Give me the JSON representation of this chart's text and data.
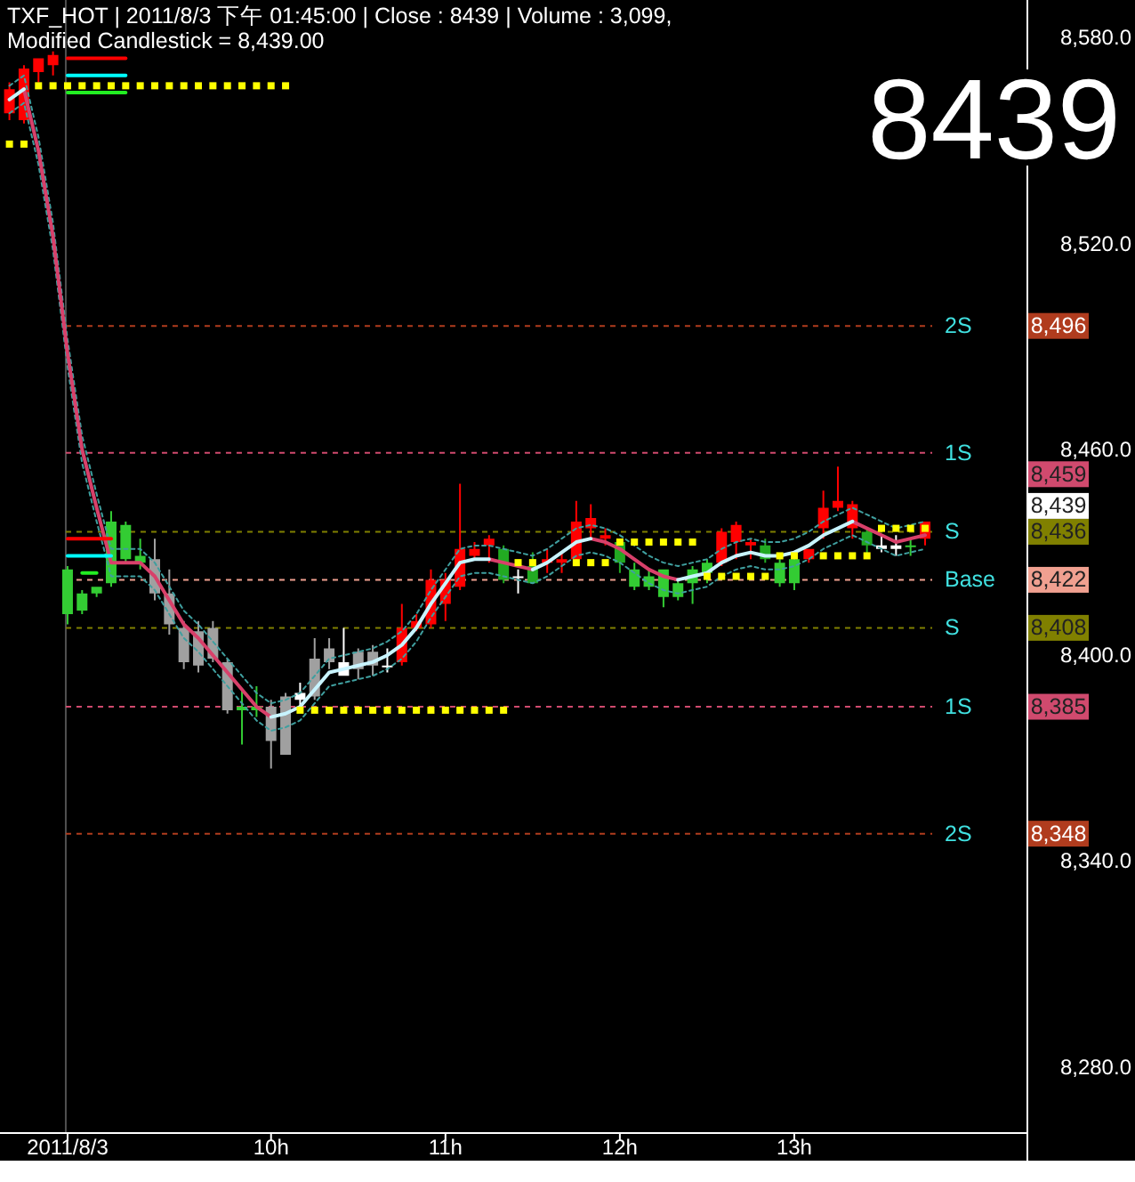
{
  "chart_data": {
    "type": "candlestick",
    "title": "TXF_HOT | 2011/8/3 下午 01:45:00 | Close : 8439 | Volume : 3,099,",
    "subtitle": "Modified Candlestick = 8,439.00",
    "categories": [
      null,
      null,
      null,
      null,
      "2011/8/3",
      null,
      null,
      null,
      null,
      null,
      null,
      null,
      null,
      null,
      null,
      null,
      null,
      null,
      "10h",
      null,
      null,
      null,
      null,
      null,
      null,
      null,
      null,
      null,
      null,
      null,
      "11h",
      null,
      null,
      null,
      null,
      null,
      null,
      null,
      null,
      null,
      null,
      null,
      "12h",
      null,
      null,
      null,
      null,
      null,
      null,
      null,
      null,
      null,
      null,
      null,
      "13h",
      null,
      null,
      null,
      null,
      null,
      null,
      null,
      null,
      null
    ],
    "ohlc": [
      [
        8558,
        8567,
        8556,
        8565
      ],
      [
        8556,
        8572,
        8555,
        8571
      ],
      [
        8570,
        8574,
        8567,
        8574
      ],
      [
        8572,
        8576,
        8569,
        8575
      ],
      [
        8425,
        8426,
        8409,
        8412
      ],
      [
        8418,
        8419,
        8412,
        8413
      ],
      [
        8420,
        8420,
        8417,
        8418
      ],
      [
        8439,
        8442,
        8420,
        8421
      ],
      [
        8438,
        8439,
        8427,
        8428
      ],
      [
        8429,
        8434,
        8425,
        8427
      ],
      [
        8428,
        8434,
        8416,
        8418
      ],
      [
        8418,
        8425,
        8406,
        8409
      ],
      [
        8408,
        8410,
        8396,
        8398
      ],
      [
        8407,
        8410,
        8395,
        8397
      ],
      [
        8408,
        8410,
        8398,
        8399
      ],
      [
        8398,
        8399,
        8383,
        8384
      ],
      [
        8385,
        8390,
        8374,
        8384
      ],
      [
        8385,
        8391,
        8382,
        8384
      ],
      [
        8385,
        8387,
        8367,
        8375
      ],
      [
        8388,
        8389,
        8371,
        8371
      ],
      [
        8387,
        8392,
        8385,
        8389
      ],
      [
        8388,
        8405,
        8387,
        8399
      ],
      [
        8398,
        8405,
        8396,
        8402
      ],
      [
        8394,
        8408,
        8394,
        8398
      ],
      [
        8396,
        8402,
        8393,
        8401
      ],
      [
        8397,
        8403,
        8394,
        8401
      ],
      [
        8397,
        8402,
        8395,
        8397
      ],
      [
        8398,
        8415,
        8397,
        8408
      ],
      [
        8408,
        8412,
        8407,
        8410
      ],
      [
        8409,
        8425,
        8408,
        8422
      ],
      [
        8415,
        8424,
        8410,
        8422
      ],
      [
        8420,
        8450,
        8419,
        8431
      ],
      [
        8429,
        8433,
        8428,
        8431
      ],
      [
        8432,
        8435,
        8427,
        8434
      ],
      [
        8431,
        8432,
        8421,
        8422
      ],
      [
        8423,
        8425,
        8418,
        8423
      ],
      [
        8426,
        8430,
        8421,
        8421
      ],
      [
        8427,
        8431,
        8424,
        8428
      ],
      [
        8427,
        8430,
        8424,
        8428
      ],
      [
        8428,
        8445,
        8427,
        8439
      ],
      [
        8437,
        8444,
        8434,
        8440
      ],
      [
        8434,
        8437,
        8432,
        8435
      ],
      [
        8433,
        8434,
        8424,
        8427
      ],
      [
        8425,
        8427,
        8419,
        8420
      ],
      [
        8423,
        8425,
        8419,
        8420
      ],
      [
        8425,
        8425,
        8414,
        8417
      ],
      [
        8421,
        8422,
        8416,
        8417
      ],
      [
        8425,
        8426,
        8415,
        8421
      ],
      [
        8427,
        8428,
        8421,
        8424
      ],
      [
        8427,
        8437,
        8426,
        8436
      ],
      [
        8433,
        8439,
        8428,
        8438
      ],
      [
        8432,
        8434,
        8428,
        8433
      ],
      [
        8432,
        8434,
        8427,
        8428
      ],
      [
        8427,
        8428,
        8420,
        8421
      ],
      [
        8428,
        8429,
        8419,
        8421
      ],
      [
        8428,
        8431,
        8427,
        8431
      ],
      [
        8437,
        8448,
        8434,
        8443
      ],
      [
        8443,
        8455,
        8442,
        8445
      ],
      [
        8437,
        8445,
        8434,
        8444
      ],
      [
        8436,
        8437,
        8429,
        8432
      ],
      [
        8431,
        8435,
        8430,
        8432
      ],
      [
        8431,
        8435,
        8429,
        8432
      ],
      [
        8432,
        8434,
        8429,
        8432
      ],
      [
        8434,
        8439,
        8432,
        8439
      ]
    ],
    "colors": [
      "#ff0000",
      "#ff0000",
      "#ff0000",
      "#ff0000",
      "#33cc33",
      "#33cc33",
      "#33cc33",
      "#33cc33",
      "#33cc33",
      "#33cc33",
      "#a0a0a0",
      "#a0a0a0",
      "#a0a0a0",
      "#a0a0a0",
      "#a0a0a0",
      "#a0a0a0",
      "#33cc33",
      "#33cc33",
      "#a0a0a0",
      "#a0a0a0",
      "#ffffff",
      "#a0a0a0",
      "#a0a0a0",
      "#ffffff",
      "#a0a0a0",
      "#a0a0a0",
      "#ffffff",
      "#ff0000",
      "#ff0000",
      "#ff0000",
      "#ff0000",
      "#ff0000",
      "#ff0000",
      "#ff0000",
      "#22aa22",
      "#ffffff",
      "#22aa22",
      "#ff0000",
      "#ff0000",
      "#ff0000",
      "#ff0000",
      "#ff0000",
      "#22aa22",
      "#33cc33",
      "#33cc33",
      "#33cc33",
      "#33cc33",
      "#33cc33",
      "#33cc33",
      "#ff0000",
      "#ff0000",
      "#ff0000",
      "#22aa22",
      "#33cc33",
      "#33cc33",
      "#ff0000",
      "#ff0000",
      "#ff0000",
      "#ff0000",
      "#22aa22",
      "#ffffff",
      "#ffffff",
      "#33cc33",
      "#ff0000"
    ],
    "ylim": [
      8261,
      8591
    ],
    "yticks": [
      {
        "value": 8280,
        "label": "8,280.0"
      },
      {
        "value": 8340,
        "label": "8,340.0"
      },
      {
        "value": 8400,
        "label": "8,400.0"
      },
      {
        "value": 8460,
        "label": "8,460.0"
      },
      {
        "value": 8520,
        "label": "8,520.0"
      },
      {
        "value": 8580,
        "label": "8,580.0"
      }
    ],
    "series": [
      {
        "type": "line",
        "color": "#3f9f9f",
        "line_style": "dashed",
        "values": [
          8566,
          8569,
          8551,
          8526,
          8492,
          8464,
          8447,
          8431,
          8431,
          8431,
          8427,
          8420,
          8413,
          8409,
          8404,
          8399,
          8394,
          8389,
          8386,
          8387,
          8389,
          8394,
          8399,
          8400,
          8401,
          8402,
          8404,
          8407,
          8412,
          8419,
          8425,
          8431,
          8432,
          8432,
          8431,
          8430,
          8429,
          8431,
          8434,
          8437,
          8438,
          8437,
          8435,
          8432,
          8429,
          8427,
          8426,
          8427,
          8428,
          8431,
          8433,
          8434,
          8433,
          8433,
          8434,
          8436,
          8439,
          8441,
          8443,
          8441,
          8439,
          8437,
          8438,
          8439
        ]
      },
      {
        "type": "line",
        "color": "#3f9f9f",
        "line_style": "dashed",
        "values": [
          8558,
          8561,
          8543,
          8518,
          8484,
          8456,
          8439,
          8423,
          8423,
          8423,
          8419,
          8412,
          8405,
          8401,
          8396,
          8391,
          8386,
          8381,
          8378,
          8379,
          8381,
          8386,
          8391,
          8392,
          8393,
          8394,
          8396,
          8399,
          8404,
          8411,
          8417,
          8423,
          8424,
          8424,
          8423,
          8422,
          8421,
          8423,
          8426,
          8429,
          8430,
          8429,
          8427,
          8424,
          8421,
          8419,
          8418,
          8419,
          8420,
          8423,
          8425,
          8426,
          8425,
          8425,
          8426,
          8428,
          8431,
          8433,
          8435,
          8433,
          8431,
          8429,
          8430,
          8431
        ]
      },
      {
        "type": "line",
        "color": "#d8406a",
        "values": [
          null,
          8565,
          8547,
          8522,
          8488,
          8460,
          8443,
          8427,
          8427,
          8427,
          8423,
          8416,
          8409,
          8405,
          8400,
          8395,
          8390,
          8385,
          8382,
          null,
          null,
          null,
          null,
          null,
          null,
          null,
          null,
          null,
          null,
          null,
          null,
          null,
          null,
          8428,
          8427,
          8426,
          8425,
          null,
          null,
          null,
          8434,
          8433,
          8431,
          8428,
          8425,
          8423,
          8422,
          null,
          null,
          null,
          null,
          null,
          null,
          null,
          null,
          null,
          null,
          null,
          8439,
          8437,
          8435,
          8433,
          8434,
          8435
        ]
      },
      {
        "type": "line",
        "color": "#c8f4ff",
        "values": [
          8562,
          8565,
          null,
          null,
          null,
          null,
          null,
          null,
          null,
          null,
          null,
          null,
          null,
          null,
          null,
          null,
          null,
          null,
          8382,
          8383,
          8385,
          8390,
          8395,
          8396,
          8397,
          8398,
          8400,
          8403,
          8408,
          8415,
          8421,
          8427,
          8428,
          8428,
          null,
          null,
          8425,
          8427,
          8430,
          8433,
          8434,
          null,
          null,
          null,
          null,
          null,
          8422,
          8423,
          8424,
          8427,
          8429,
          8430,
          8429,
          8429,
          8430,
          8432,
          8435,
          8437,
          8439,
          null,
          null,
          null,
          null,
          null
        ]
      },
      {
        "type": "scatter",
        "color": "#ffff00",
        "marker": "square",
        "values": [
          8549,
          8549,
          8566,
          8566,
          8566,
          8566,
          8566,
          8566,
          8566,
          8566,
          8566,
          8566,
          8566,
          8566,
          8566,
          8566,
          8566,
          8566,
          8566,
          8566,
          8384,
          8384,
          8384,
          8384,
          8384,
          8384,
          8384,
          8384,
          8384,
          8384,
          8384,
          8384,
          8384,
          8384,
          8384,
          8427,
          8427,
          null,
          null,
          8427,
          8427,
          8427,
          8433,
          8433,
          8433,
          8433,
          8433,
          8433,
          8423,
          8423,
          8423,
          8423,
          8423,
          8429,
          8429,
          null,
          8429,
          8429,
          8429,
          8429,
          8437,
          8437,
          8437,
          8437
        ]
      },
      {
        "type": "line",
        "color": "#ff0000",
        "values": [
          null,
          null,
          null,
          null,
          8574,
          8574,
          8574,
          8574,
          8574,
          null,
          null,
          null,
          null,
          null,
          null,
          null,
          null,
          null,
          null,
          null,
          null,
          null,
          null,
          null,
          null,
          null,
          null,
          null,
          null,
          null,
          null,
          null,
          null,
          null,
          null,
          null,
          null,
          null,
          null,
          null,
          null,
          null,
          null,
          null,
          null,
          null,
          null,
          null,
          null,
          null,
          null,
          null,
          null,
          null,
          null,
          null,
          null,
          null,
          null,
          null,
          null,
          null,
          null,
          null
        ]
      },
      {
        "type": "line",
        "color": "#00ffff",
        "values": [
          null,
          null,
          null,
          null,
          8569,
          8569,
          8569,
          8569,
          8569,
          null,
          null,
          null,
          null,
          null,
          null,
          null,
          null,
          null,
          null,
          null,
          null,
          null,
          null,
          null,
          null,
          null,
          null,
          null,
          null,
          null,
          null,
          null,
          null,
          null,
          null,
          null,
          null,
          null,
          null,
          null,
          null,
          null,
          null,
          null,
          null,
          null,
          null,
          null,
          null,
          null,
          null,
          null,
          null,
          null,
          null,
          null,
          null,
          null,
          null,
          null,
          null,
          null,
          null,
          null
        ]
      },
      {
        "type": "line",
        "color": "#22ee22",
        "values": [
          null,
          null,
          null,
          null,
          8564,
          8564,
          8564,
          8564,
          8564,
          null,
          null,
          null,
          null,
          null,
          null,
          null,
          null,
          null,
          null,
          null,
          null,
          null,
          null,
          null,
          null,
          null,
          null,
          null,
          null,
          null,
          null,
          null,
          null,
          null,
          null,
          null,
          null,
          null,
          null,
          null,
          null,
          null,
          null,
          null,
          null,
          null,
          null,
          null,
          null,
          null,
          null,
          null,
          null,
          null,
          null,
          null,
          null,
          null,
          null,
          null,
          null,
          null,
          null,
          null
        ]
      },
      {
        "type": "line",
        "color": "#ff0000",
        "values": [
          null,
          null,
          null,
          null,
          8434,
          8434,
          8434,
          8434,
          null,
          null,
          null,
          null,
          null,
          null,
          null,
          null,
          null,
          null,
          null,
          null,
          null,
          null,
          null,
          null,
          null,
          null,
          null,
          null,
          null,
          null,
          null,
          null,
          null,
          null,
          null,
          null,
          null,
          null,
          null,
          null,
          null,
          null,
          null,
          null,
          null,
          null,
          null,
          null,
          null,
          null,
          null,
          null,
          null,
          null,
          null,
          null,
          null,
          null,
          null,
          null,
          null,
          null,
          null,
          null
        ]
      },
      {
        "type": "line",
        "color": "#00ffff",
        "values": [
          null,
          null,
          null,
          null,
          8429,
          8429,
          8429,
          8429,
          null,
          null,
          null,
          null,
          null,
          null,
          null,
          null,
          null,
          null,
          null,
          null,
          null,
          null,
          null,
          null,
          null,
          null,
          null,
          null,
          null,
          null,
          null,
          null,
          null,
          null,
          null,
          null,
          null,
          null,
          null,
          null,
          null,
          null,
          null,
          null,
          null,
          null,
          null,
          null,
          null,
          null,
          null,
          null,
          null,
          null,
          null,
          null,
          null,
          null,
          null,
          null,
          null,
          null,
          null,
          null
        ]
      },
      {
        "type": "line",
        "color": "#22ee22",
        "values": [
          null,
          null,
          null,
          null,
          null,
          8424,
          8424,
          null,
          null,
          null,
          null,
          null,
          null,
          null,
          null,
          null,
          null,
          null,
          null,
          null,
          null,
          null,
          null,
          null,
          null,
          null,
          null,
          null,
          null,
          null,
          null,
          null,
          null,
          null,
          null,
          null,
          null,
          null,
          null,
          null,
          null,
          null,
          null,
          null,
          null,
          null,
          null,
          null,
          null,
          null,
          null,
          null,
          null,
          null,
          null,
          null,
          null,
          null,
          null,
          null,
          null,
          null,
          null,
          null
        ]
      }
    ],
    "ref_lines": [
      {
        "axis": "x",
        "value": "2011/8/3",
        "color": "#505050"
      },
      {
        "axis": "y",
        "value": 8496,
        "label": "2S",
        "color": "#b03c1e",
        "line_style": "dashed"
      },
      {
        "axis": "y",
        "value": 8459,
        "label": "1S",
        "color": "#d04a6e",
        "line_style": "dashed"
      },
      {
        "axis": "y",
        "value": 8436,
        "label": "S",
        "color": "#808000",
        "line_style": "dashed"
      },
      {
        "axis": "y",
        "value": 8422,
        "label": "Base",
        "color": "#f0a090",
        "line_style": "dashed"
      },
      {
        "axis": "y",
        "value": 8408,
        "label": "S",
        "color": "#808000",
        "line_style": "dashed"
      },
      {
        "axis": "y",
        "value": 8385,
        "label": "1S",
        "color": "#d04a6e",
        "line_style": "dashed"
      },
      {
        "axis": "y",
        "value": 8348,
        "label": "2S",
        "color": "#b03c1e",
        "line_style": "dashed"
      }
    ],
    "annotations": [
      "8439",
      "8,496",
      "8,459",
      "8,436",
      "8,422",
      "8,408",
      "8,385",
      "8,348",
      "8,439"
    ]
  }
}
